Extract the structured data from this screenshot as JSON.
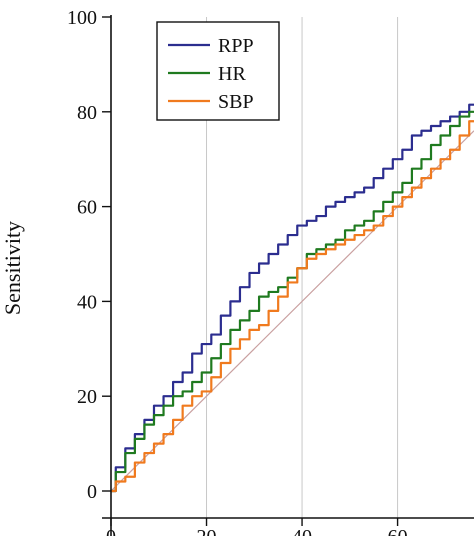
{
  "chart_data": {
    "type": "line",
    "title": "",
    "xlabel": "",
    "ylabel": "Sensitivity",
    "xlim": [
      0,
      76
    ],
    "ylim": [
      0,
      100
    ],
    "x_ticks": [
      0,
      20,
      40,
      60
    ],
    "y_ticks": [
      0,
      20,
      40,
      60,
      80,
      100
    ],
    "grid": "vertical",
    "legend": "top-left",
    "reference_line": {
      "from": [
        0,
        0
      ],
      "to": [
        76,
        76
      ],
      "color": "#c9a0a0"
    },
    "series": [
      {
        "name": "RPP",
        "color": "#2b2d8f",
        "x": [
          0,
          2,
          4,
          6,
          8,
          10,
          12,
          14,
          16,
          18,
          20,
          22,
          24,
          26,
          28,
          30,
          32,
          34,
          36,
          38,
          40,
          42,
          44,
          46,
          48,
          50,
          52,
          54,
          56,
          58,
          60,
          62,
          64,
          66,
          68,
          70,
          72,
          74,
          76
        ],
        "y": [
          0,
          5,
          9,
          12,
          15,
          18,
          20,
          23,
          25,
          29,
          31,
          33,
          37,
          40,
          43,
          46,
          48,
          50,
          52,
          54,
          56,
          57,
          58,
          60,
          61,
          62,
          63,
          64,
          66,
          68,
          70,
          72,
          75,
          76,
          77,
          78,
          79,
          80,
          81.5
        ]
      },
      {
        "name": "HR",
        "color": "#1f7a1f",
        "x": [
          0,
          2,
          4,
          6,
          8,
          10,
          12,
          14,
          16,
          18,
          20,
          22,
          24,
          26,
          28,
          30,
          32,
          34,
          36,
          38,
          40,
          42,
          44,
          46,
          48,
          50,
          52,
          54,
          56,
          58,
          60,
          62,
          64,
          66,
          68,
          70,
          72,
          74,
          76
        ],
        "y": [
          0,
          4,
          8,
          11,
          14,
          16,
          18,
          20,
          21,
          23,
          25,
          28,
          31,
          34,
          36,
          38,
          41,
          42,
          43,
          45,
          47,
          50,
          51,
          52,
          53,
          55,
          56,
          57,
          59,
          61,
          63,
          65,
          68,
          70,
          73,
          75,
          77,
          79,
          80
        ]
      },
      {
        "name": "SBP",
        "color": "#f07a1e",
        "x": [
          0,
          2,
          4,
          6,
          8,
          10,
          12,
          14,
          16,
          18,
          20,
          22,
          24,
          26,
          28,
          30,
          32,
          34,
          36,
          38,
          40,
          42,
          44,
          46,
          48,
          50,
          52,
          54,
          56,
          58,
          60,
          62,
          64,
          66,
          68,
          70,
          72,
          74,
          76
        ],
        "y": [
          0,
          2,
          3,
          6,
          8,
          10,
          12,
          15,
          18,
          20,
          21,
          24,
          27,
          30,
          32,
          34,
          35,
          38,
          41,
          44,
          47,
          49,
          50,
          51,
          52,
          53,
          54,
          55,
          56,
          58,
          60,
          62,
          64,
          66,
          68,
          70,
          72,
          75,
          78
        ]
      }
    ]
  }
}
